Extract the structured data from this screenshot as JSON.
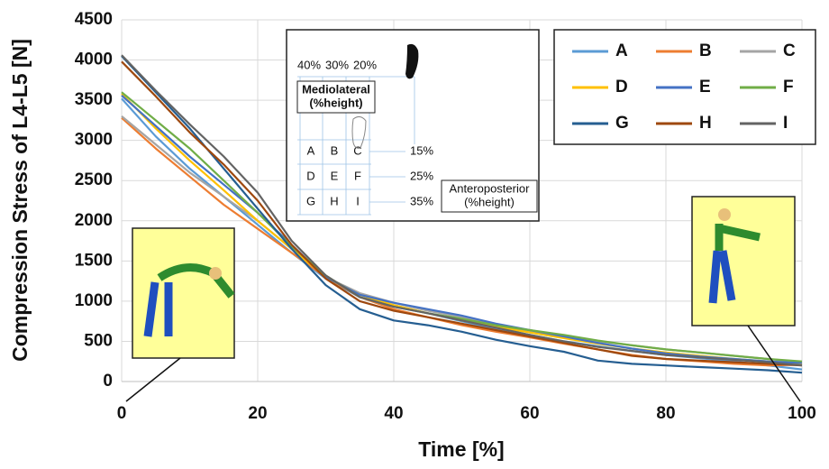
{
  "chart_data": {
    "type": "line",
    "x_label": "Time [%]",
    "y_label": "Compression Stress of L4-L5 [N]",
    "x": [
      0,
      5,
      10,
      15,
      20,
      25,
      30,
      35,
      40,
      45,
      50,
      55,
      60,
      65,
      70,
      75,
      80,
      85,
      90,
      95,
      100
    ],
    "xlim": [
      0,
      100
    ],
    "xticks": [
      0,
      20,
      40,
      60,
      80,
      100
    ],
    "ylim": [
      0,
      4500
    ],
    "yticks": [
      0,
      500,
      1000,
      1500,
      2000,
      2500,
      3000,
      3500,
      4000,
      4500
    ],
    "grid": true,
    "legend": "upper right",
    "series": [
      {
        "name": "A",
        "color": "#5b9bd5",
        "values": [
          3520,
          3050,
          2650,
          2300,
          1950,
          1600,
          1280,
          1050,
          950,
          850,
          750,
          650,
          580,
          500,
          440,
          380,
          330,
          290,
          250,
          200,
          150
        ]
      },
      {
        "name": "B",
        "color": "#ed7d31",
        "values": [
          3280,
          2900,
          2550,
          2200,
          1900,
          1600,
          1300,
          1050,
          900,
          800,
          700,
          620,
          550,
          470,
          400,
          330,
          280,
          250,
          220,
          200,
          210
        ]
      },
      {
        "name": "C",
        "color": "#a5a5a5",
        "values": [
          3300,
          2950,
          2600,
          2300,
          2000,
          1650,
          1300,
          1100,
          980,
          880,
          800,
          700,
          630,
          560,
          500,
          450,
          400,
          360,
          320,
          280,
          240
        ]
      },
      {
        "name": "D",
        "color": "#ffc000",
        "values": [
          3580,
          3150,
          2750,
          2380,
          2000,
          1650,
          1300,
          1080,
          950,
          850,
          760,
          680,
          610,
          540,
          470,
          410,
          360,
          320,
          280,
          250,
          220
        ]
      },
      {
        "name": "E",
        "color": "#4472c4",
        "values": [
          3560,
          3180,
          2800,
          2450,
          2100,
          1700,
          1300,
          1080,
          980,
          900,
          820,
          720,
          640,
          560,
          480,
          410,
          350,
          310,
          280,
          250,
          230
        ]
      },
      {
        "name": "F",
        "color": "#70ad47",
        "values": [
          3600,
          3250,
          2900,
          2500,
          2100,
          1680,
          1320,
          1050,
          930,
          850,
          780,
          700,
          640,
          580,
          510,
          450,
          400,
          360,
          320,
          280,
          250
        ]
      },
      {
        "name": "G",
        "color": "#255e91",
        "values": [
          4050,
          3600,
          3150,
          2650,
          2150,
          1650,
          1200,
          900,
          760,
          700,
          620,
          520,
          440,
          370,
          260,
          220,
          200,
          180,
          160,
          140,
          110
        ]
      },
      {
        "name": "H",
        "color": "#9e480e",
        "values": [
          3980,
          3550,
          3100,
          2700,
          2250,
          1700,
          1280,
          1000,
          880,
          800,
          720,
          640,
          560,
          480,
          400,
          320,
          280,
          260,
          240,
          220,
          200
        ]
      },
      {
        "name": "I",
        "color": "#636363",
        "values": [
          4060,
          3620,
          3200,
          2800,
          2350,
          1750,
          1320,
          1050,
          930,
          850,
          760,
          670,
          580,
          500,
          430,
          380,
          330,
          300,
          270,
          240,
          200
        ]
      }
    ],
    "inset": {
      "column_labels": [
        "40%",
        "30%",
        "20%"
      ],
      "row_labels": [
        "15%",
        "25%",
        "35%"
      ],
      "mediolateral_label": [
        "Mediolateral",
        "(%height)"
      ],
      "anteroposterior_label": [
        "Anteroposterior",
        "(%height)"
      ]
    }
  }
}
